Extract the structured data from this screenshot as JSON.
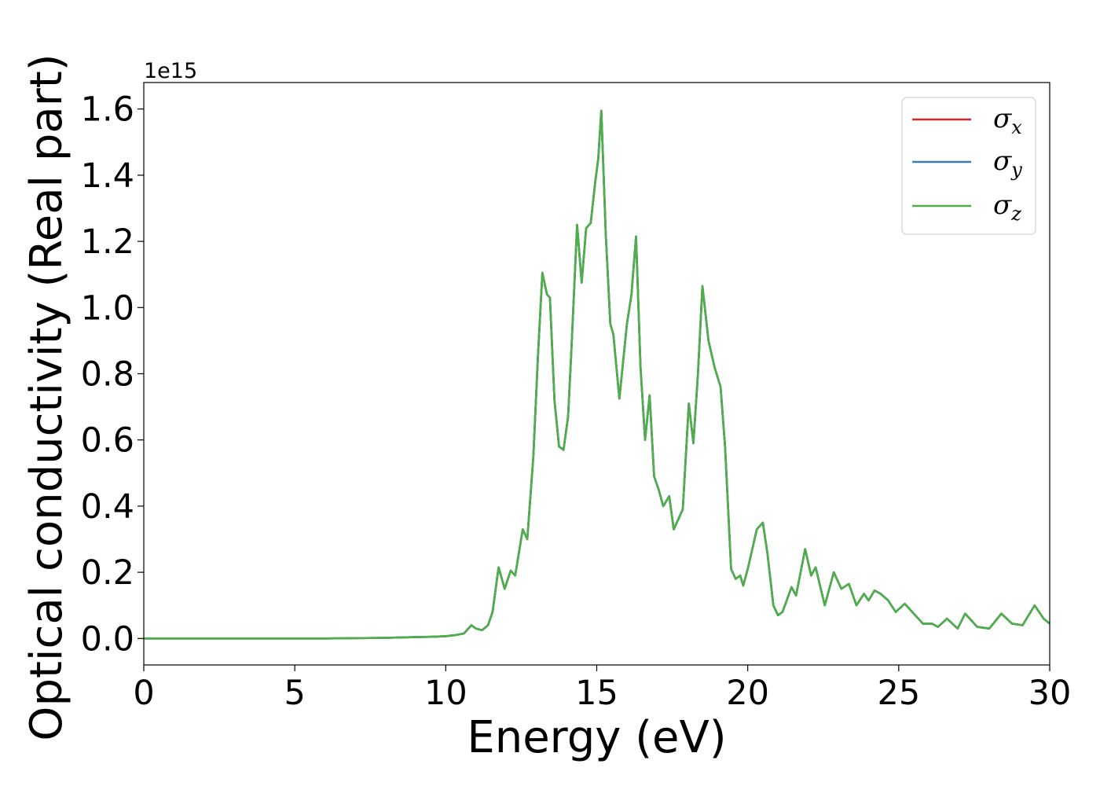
{
  "chart_data": {
    "type": "line",
    "xlabel": "Energy (eV)",
    "ylabel": "Optical conductivity (Real part)",
    "y_offset_text": "1e15",
    "xlim": [
      0,
      30
    ],
    "ylim": [
      -0.08,
      1.68
    ],
    "x_ticks": [
      0,
      5,
      10,
      15,
      20,
      25,
      30
    ],
    "x_tick_labels": [
      "0",
      "5",
      "10",
      "15",
      "20",
      "25",
      "30"
    ],
    "y_ticks": [
      0.0,
      0.2,
      0.4,
      0.6,
      0.8,
      1.0,
      1.2,
      1.4,
      1.6
    ],
    "y_tick_labels": [
      "0.0",
      "0.2",
      "0.4",
      "0.6",
      "0.8",
      "1.0",
      "1.2",
      "1.4",
      "1.6"
    ],
    "grid": false,
    "legend_position": "top-right",
    "x": [
      0,
      2,
      4,
      6,
      8,
      9,
      9.5,
      10,
      10.3,
      10.6,
      10.85,
      11.0,
      11.2,
      11.4,
      11.55,
      11.75,
      11.95,
      12.15,
      12.3,
      12.55,
      12.7,
      12.9,
      13.05,
      13.2,
      13.35,
      13.45,
      13.6,
      13.75,
      13.9,
      14.05,
      14.15,
      14.35,
      14.5,
      14.65,
      14.8,
      14.95,
      15.05,
      15.15,
      15.3,
      15.45,
      15.55,
      15.75,
      16.0,
      16.15,
      16.3,
      16.45,
      16.6,
      16.75,
      16.9,
      17.05,
      17.2,
      17.4,
      17.55,
      17.85,
      18.05,
      18.2,
      18.35,
      18.5,
      18.7,
      18.9,
      19.1,
      19.25,
      19.45,
      19.6,
      19.75,
      19.85,
      20.0,
      20.3,
      20.5,
      20.65,
      20.85,
      21.0,
      21.15,
      21.45,
      21.6,
      21.9,
      22.1,
      22.25,
      22.55,
      22.85,
      23.1,
      23.35,
      23.6,
      23.85,
      24.0,
      24.2,
      24.4,
      24.65,
      24.9,
      25.2,
      25.5,
      25.8,
      26.1,
      26.3,
      26.6,
      26.95,
      27.2,
      27.6,
      28.0,
      28.4,
      28.75,
      29.1,
      29.5,
      29.8,
      30.0
    ],
    "series": [
      {
        "name": "σx",
        "color": "#d62728",
        "values": [
          0,
          0,
          0,
          0,
          0.002,
          0.004,
          0.005,
          0.007,
          0.01,
          0.015,
          0.04,
          0.03,
          0.025,
          0.04,
          0.08,
          0.215,
          0.15,
          0.205,
          0.19,
          0.33,
          0.3,
          0.55,
          0.85,
          1.105,
          1.04,
          1.03,
          0.72,
          0.58,
          0.57,
          0.67,
          0.85,
          1.25,
          1.075,
          1.24,
          1.255,
          1.38,
          1.45,
          1.595,
          1.22,
          0.95,
          0.92,
          0.725,
          0.95,
          1.04,
          1.215,
          0.82,
          0.6,
          0.735,
          0.49,
          0.45,
          0.4,
          0.43,
          0.33,
          0.39,
          0.71,
          0.59,
          0.8,
          1.065,
          0.9,
          0.82,
          0.76,
          0.58,
          0.21,
          0.18,
          0.19,
          0.16,
          0.21,
          0.33,
          0.35,
          0.26,
          0.1,
          0.07,
          0.08,
          0.155,
          0.13,
          0.27,
          0.19,
          0.215,
          0.1,
          0.2,
          0.15,
          0.165,
          0.1,
          0.135,
          0.115,
          0.145,
          0.135,
          0.115,
          0.08,
          0.105,
          0.075,
          0.045,
          0.045,
          0.035,
          0.06,
          0.03,
          0.075,
          0.035,
          0.03,
          0.075,
          0.045,
          0.04,
          0.1,
          0.06,
          0.045
        ]
      },
      {
        "name": "σy",
        "color": "#377eb8",
        "values": [
          0,
          0,
          0,
          0,
          0.002,
          0.004,
          0.005,
          0.007,
          0.01,
          0.015,
          0.04,
          0.03,
          0.025,
          0.04,
          0.08,
          0.215,
          0.15,
          0.205,
          0.19,
          0.33,
          0.3,
          0.55,
          0.85,
          1.105,
          1.04,
          1.03,
          0.72,
          0.58,
          0.57,
          0.67,
          0.85,
          1.25,
          1.075,
          1.24,
          1.255,
          1.38,
          1.45,
          1.595,
          1.22,
          0.95,
          0.92,
          0.725,
          0.95,
          1.04,
          1.215,
          0.82,
          0.6,
          0.735,
          0.49,
          0.45,
          0.4,
          0.43,
          0.33,
          0.39,
          0.71,
          0.59,
          0.8,
          1.065,
          0.9,
          0.82,
          0.76,
          0.58,
          0.21,
          0.18,
          0.19,
          0.16,
          0.21,
          0.33,
          0.35,
          0.26,
          0.1,
          0.07,
          0.08,
          0.155,
          0.13,
          0.27,
          0.19,
          0.215,
          0.1,
          0.2,
          0.15,
          0.165,
          0.1,
          0.135,
          0.115,
          0.145,
          0.135,
          0.115,
          0.08,
          0.105,
          0.075,
          0.045,
          0.045,
          0.035,
          0.06,
          0.03,
          0.075,
          0.035,
          0.03,
          0.075,
          0.045,
          0.04,
          0.1,
          0.06,
          0.045
        ]
      },
      {
        "name": "σz",
        "color": "#4daf4a",
        "values": [
          0,
          0,
          0,
          0,
          0.002,
          0.004,
          0.005,
          0.007,
          0.01,
          0.015,
          0.04,
          0.03,
          0.025,
          0.04,
          0.08,
          0.215,
          0.15,
          0.205,
          0.19,
          0.33,
          0.3,
          0.55,
          0.85,
          1.105,
          1.04,
          1.03,
          0.72,
          0.58,
          0.57,
          0.67,
          0.85,
          1.25,
          1.075,
          1.24,
          1.255,
          1.38,
          1.45,
          1.595,
          1.22,
          0.95,
          0.92,
          0.725,
          0.95,
          1.04,
          1.215,
          0.82,
          0.6,
          0.735,
          0.49,
          0.45,
          0.4,
          0.43,
          0.33,
          0.39,
          0.71,
          0.59,
          0.8,
          1.065,
          0.9,
          0.82,
          0.76,
          0.58,
          0.21,
          0.18,
          0.19,
          0.16,
          0.21,
          0.33,
          0.35,
          0.26,
          0.1,
          0.07,
          0.08,
          0.155,
          0.13,
          0.27,
          0.19,
          0.215,
          0.1,
          0.2,
          0.15,
          0.165,
          0.1,
          0.135,
          0.115,
          0.145,
          0.135,
          0.115,
          0.08,
          0.105,
          0.075,
          0.045,
          0.045,
          0.035,
          0.06,
          0.03,
          0.075,
          0.035,
          0.03,
          0.075,
          0.045,
          0.04,
          0.1,
          0.06,
          0.045
        ]
      }
    ],
    "legend": [
      {
        "symbol": "σ",
        "subscript": "x"
      },
      {
        "symbol": "σ",
        "subscript": "y"
      },
      {
        "symbol": "σ",
        "subscript": "z"
      }
    ]
  }
}
